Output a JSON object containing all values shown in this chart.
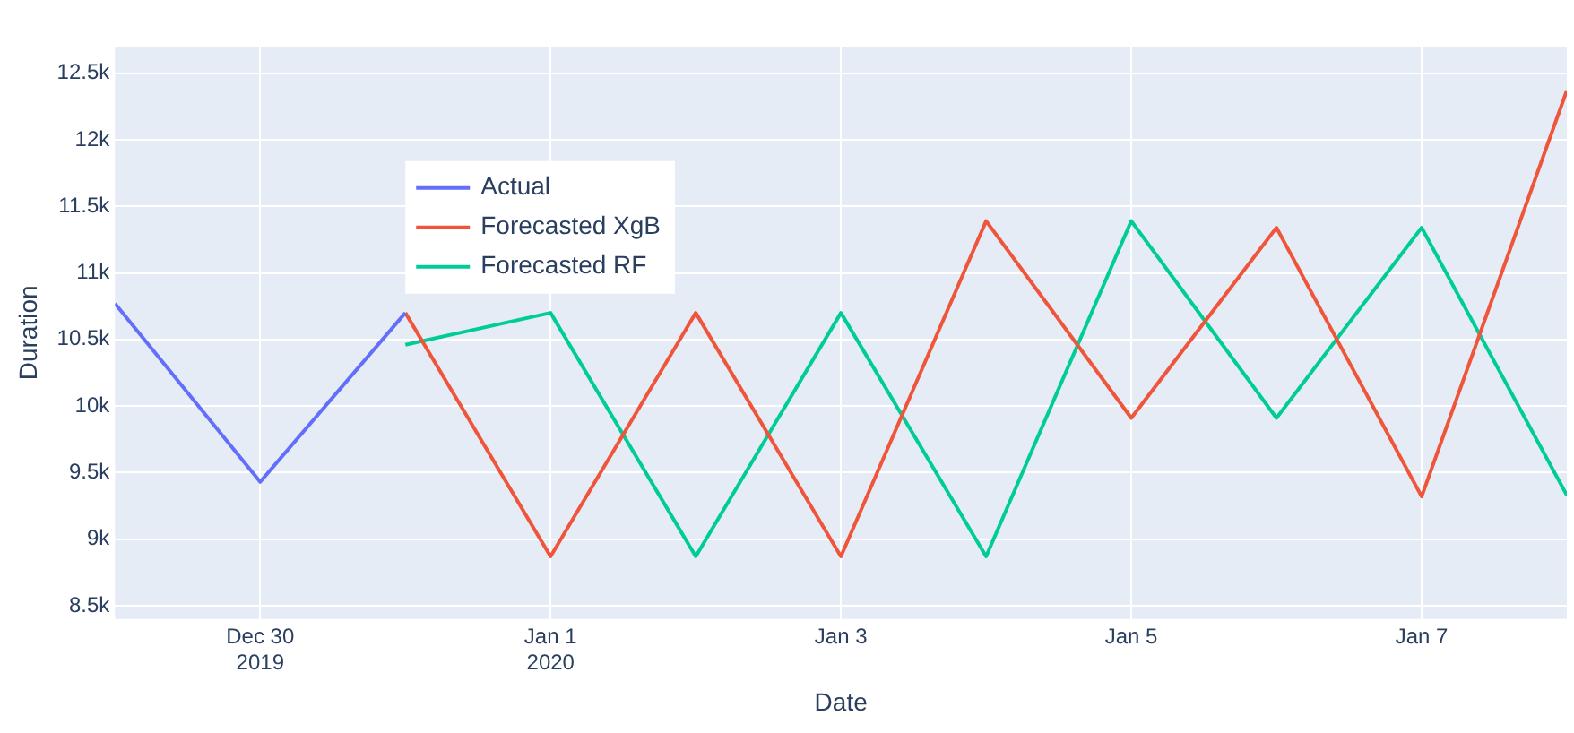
{
  "chart_data": {
    "type": "line",
    "xlabel": "Date",
    "ylabel": "Duration",
    "xlim": [
      "2019-12-29",
      "2020-01-08"
    ],
    "xticks": [
      {
        "value": "2019-12-30",
        "label": "Dec 30\n2019"
      },
      {
        "value": "2020-01-01",
        "label": "Jan 1\n2020"
      },
      {
        "value": "2020-01-03",
        "label": "Jan 3"
      },
      {
        "value": "2020-01-05",
        "label": "Jan 5"
      },
      {
        "value": "2020-01-07",
        "label": "Jan 7"
      }
    ],
    "ylim": [
      8400,
      12700
    ],
    "yticks": [
      {
        "value": 8500,
        "label": "8.5k"
      },
      {
        "value": 9000,
        "label": "9k"
      },
      {
        "value": 9500,
        "label": "9.5k"
      },
      {
        "value": 10000,
        "label": "10k"
      },
      {
        "value": 10500,
        "label": "10.5k"
      },
      {
        "value": 11000,
        "label": "11k"
      },
      {
        "value": 11500,
        "label": "11.5k"
      },
      {
        "value": 12000,
        "label": "12k"
      },
      {
        "value": 12500,
        "label": "12.5k"
      }
    ],
    "grid": true,
    "legend": "top left",
    "marker": "none",
    "line_style": "solid",
    "series": [
      {
        "name": "Actual",
        "color": "#636efa",
        "x": [
          "2019-12-29",
          "2019-12-30",
          "2019-12-31"
        ],
        "values": [
          10770,
          9430,
          10700
        ]
      },
      {
        "name": "Forecasted XgB",
        "color": "#ef553b",
        "x": [
          "2019-12-31",
          "2020-01-01",
          "2020-01-02",
          "2020-01-03",
          "2020-01-04",
          "2020-01-05",
          "2020-01-06",
          "2020-01-07",
          "2020-01-08"
        ],
        "values": [
          10700,
          8870,
          10700,
          8870,
          11390,
          9910,
          11340,
          9320,
          12370
        ]
      },
      {
        "name": "Forecasted RF",
        "color": "#00cc96",
        "x": [
          "2019-12-31",
          "2020-01-01",
          "2020-01-02",
          "2020-01-03",
          "2020-01-04",
          "2020-01-05",
          "2020-01-06",
          "2020-01-07",
          "2020-01-08"
        ],
        "values": [
          10460,
          10700,
          8870,
          10700,
          8870,
          11390,
          9910,
          11340,
          9330
        ]
      }
    ]
  }
}
